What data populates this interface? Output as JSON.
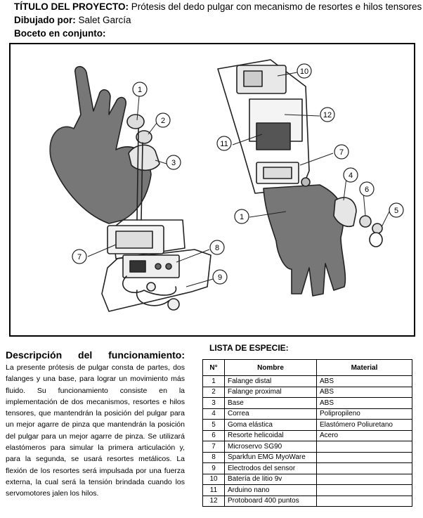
{
  "header": {
    "title_label": "TÍTULO DEL PROYECTO:",
    "title_value": " Prótesis del dedo pulgar con mecanismo de resortes e hilos tensores",
    "author_label": "Dibujado por:",
    "author_value": " Salet García",
    "sketch_label": "Boceto en conjunto:"
  },
  "drawing": {
    "callouts": [
      "1",
      "2",
      "3",
      "7",
      "8",
      "9",
      "10",
      "12",
      "11",
      "7",
      "4",
      "6",
      "5",
      "1"
    ]
  },
  "description": {
    "title": "Descripción del funcionamiento:",
    "body": "La presente prótesis de pulgar consta de partes, dos falanges y una base, para lograr un movimiento más fluido. Su funcionamiento consiste en la implementación de dos mecanismos, resortes e hilos tensores, que mantendrán la posición del pulgar para un mejor agarre de pinza que mantendrán la posición del pulgar para un mejor agarre de pinza. Se utilizará elastómeros para simular la primera articulación y, para la segunda, se usará resortes metálicos. La flexión de los resortes será impulsada por una fuerza externa, la cual será la tensión brindada cuando los servomotores jalen los hilos."
  },
  "species_list": {
    "title": "LISTA DE ESPECIE:",
    "headers": [
      "N°",
      "Nombre",
      "Material"
    ],
    "rows": [
      [
        "1",
        "Falange distal",
        "ABS"
      ],
      [
        "2",
        "Falange proximal",
        "ABS"
      ],
      [
        "3",
        "Base",
        "ABS"
      ],
      [
        "4",
        "Correa",
        "Polipropileno"
      ],
      [
        "5",
        "Goma elástica",
        "Elastómero Poliuretano"
      ],
      [
        "6",
        "Resorte helicoidal",
        "Acero"
      ],
      [
        "7",
        "Microservo SG90",
        ""
      ],
      [
        "8",
        "Sparkfun EMG MyoWare",
        ""
      ],
      [
        "9",
        "Electrodos del sensor",
        ""
      ],
      [
        "10",
        "Batería de litio 9v",
        ""
      ],
      [
        "11",
        "Arduino nano",
        ""
      ],
      [
        "12",
        "Protoboard 400 puntos",
        ""
      ]
    ]
  }
}
